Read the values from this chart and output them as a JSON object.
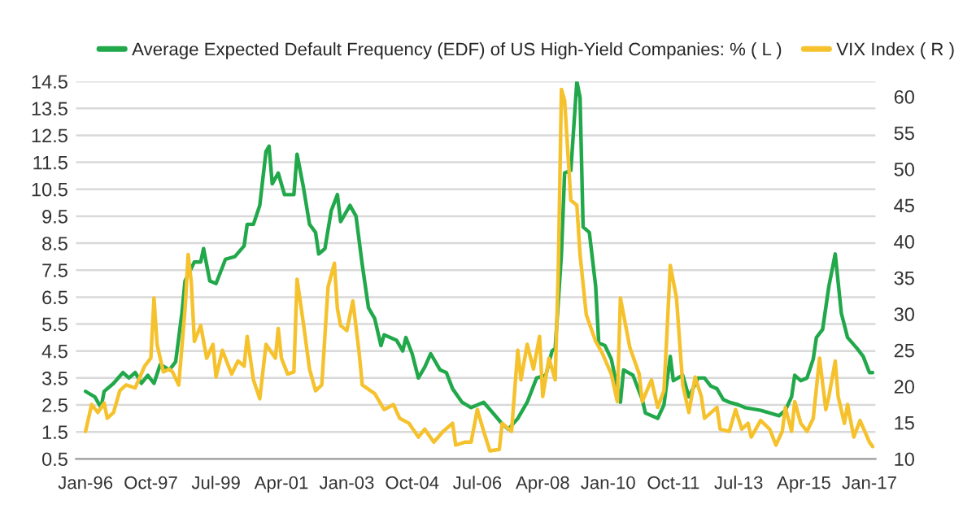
{
  "chart_data": {
    "type": "line",
    "xlim": [
      "1995-10",
      "2017-03"
    ],
    "xticks": [
      {
        "value": "1996-01",
        "label": "Jan-96"
      },
      {
        "value": "1997-10",
        "label": "Oct-97"
      },
      {
        "value": "1999-07",
        "label": "Jul-99"
      },
      {
        "value": "2001-04",
        "label": "Apr-01"
      },
      {
        "value": "2003-01",
        "label": "Jan-03"
      },
      {
        "value": "2004-10",
        "label": "Oct-04"
      },
      {
        "value": "2006-07",
        "label": "Jul-06"
      },
      {
        "value": "2008-04",
        "label": "Apr-08"
      },
      {
        "value": "2010-01",
        "label": "Jan-10"
      },
      {
        "value": "2011-10",
        "label": "Oct-11"
      },
      {
        "value": "2013-07",
        "label": "Jul-13"
      },
      {
        "value": "2015-04",
        "label": "Apr-15"
      },
      {
        "value": "2017-01",
        "label": "Jan-17"
      }
    ],
    "ylim": [
      0.5,
      14.5
    ],
    "yticks": [
      0.5,
      1.5,
      2.5,
      3.5,
      4.5,
      5.5,
      6.5,
      7.5,
      8.5,
      9.5,
      10.5,
      11.5,
      12.5,
      13.5,
      14.5
    ],
    "y2lim": [
      10,
      62.1
    ],
    "y2ticks": [
      10,
      15,
      20,
      25,
      30,
      35,
      40,
      45,
      50,
      55,
      60
    ],
    "grid": "y",
    "legend": "top",
    "line_style": "solid",
    "marker": "none",
    "series": [
      {
        "name": "Average Expected Default Frequency (EDF) of US High-Yield Companies: % ( L )",
        "color": "#21a84a",
        "axis": "y",
        "x": [
          "1996-01",
          "1996-04",
          "1996-06",
          "1996-07",
          "1996-10",
          "1997-01",
          "1997-03",
          "1997-05",
          "1997-07",
          "1997-09",
          "1997-11",
          "1998-01",
          "1998-04",
          "1998-06",
          "1998-08",
          "1998-09",
          "1998-12",
          "1999-02",
          "1999-03",
          "1999-05",
          "1999-07",
          "1999-10",
          "2000-01",
          "2000-04",
          "2000-05",
          "2000-07",
          "2000-09",
          "2000-11",
          "2000-12",
          "2001-01",
          "2001-03",
          "2001-05",
          "2001-08",
          "2001-09",
          "2001-11",
          "2002-01",
          "2002-03",
          "2002-04",
          "2002-06",
          "2002-08",
          "2002-10",
          "2002-11",
          "2003-02",
          "2003-04",
          "2003-06",
          "2003-08",
          "2003-10",
          "2003-12",
          "2004-01",
          "2004-05",
          "2004-07",
          "2004-08",
          "2004-10",
          "2004-12",
          "2005-02",
          "2005-04",
          "2005-07",
          "2005-09",
          "2005-11",
          "2006-02",
          "2006-05",
          "2006-09",
          "2006-12",
          "2007-03",
          "2007-05",
          "2007-08",
          "2007-11",
          "2008-02",
          "2008-05",
          "2008-07",
          "2008-08",
          "2008-10",
          "2008-11",
          "2009-01",
          "2009-03",
          "2009-04",
          "2009-05",
          "2009-07",
          "2009-09",
          "2009-10",
          "2009-12",
          "2010-02",
          "2010-05",
          "2010-06",
          "2010-09",
          "2010-12",
          "2011-01",
          "2011-05",
          "2011-07",
          "2011-09",
          "2011-10",
          "2012-01",
          "2012-03",
          "2012-06",
          "2012-08",
          "2012-10",
          "2012-12",
          "2013-02",
          "2013-04",
          "2013-07",
          "2013-09",
          "2014-02",
          "2014-05",
          "2014-08",
          "2014-10",
          "2014-12",
          "2015-01",
          "2015-03",
          "2015-05",
          "2015-07",
          "2015-08",
          "2015-10",
          "2015-12",
          "2016-02",
          "2016-04",
          "2016-06",
          "2016-09",
          "2016-11",
          "2017-01",
          "2017-02"
        ],
        "values": [
          3.0,
          2.8,
          2.4,
          3.0,
          3.3,
          3.7,
          3.5,
          3.7,
          3.3,
          3.6,
          3.3,
          4.0,
          3.8,
          4.1,
          5.9,
          7.1,
          7.8,
          7.8,
          8.3,
          7.1,
          7.0,
          7.9,
          8.0,
          8.4,
          9.2,
          9.2,
          9.9,
          11.9,
          12.1,
          10.7,
          11.1,
          10.3,
          10.3,
          11.8,
          10.6,
          9.2,
          8.9,
          8.1,
          8.3,
          9.7,
          10.3,
          9.3,
          9.9,
          9.5,
          7.7,
          6.1,
          5.7,
          4.7,
          5.1,
          4.9,
          4.5,
          5.0,
          4.4,
          3.5,
          3.9,
          4.4,
          3.8,
          3.7,
          3.1,
          2.6,
          2.4,
          2.6,
          2.2,
          1.8,
          1.6,
          2.0,
          2.6,
          3.5,
          3.6,
          4.5,
          4.6,
          8.1,
          11.1,
          11.2,
          14.5,
          13.9,
          9.1,
          8.9,
          6.9,
          4.8,
          4.7,
          4.2,
          2.6,
          3.8,
          3.6,
          2.7,
          2.2,
          2.0,
          2.5,
          4.3,
          3.4,
          3.6,
          2.8,
          3.5,
          3.5,
          3.2,
          3.1,
          2.7,
          2.6,
          2.5,
          2.4,
          2.3,
          2.2,
          2.1,
          2.3,
          2.8,
          3.6,
          3.4,
          3.5,
          4.2,
          5.0,
          5.3,
          6.9,
          8.1,
          5.9,
          5.0,
          4.6,
          4.3,
          3.7,
          3.7
        ]
      },
      {
        "name": "VIX Index ( R )",
        "color": "#f5c22e",
        "axis": "y2",
        "x": [
          "1996-01",
          "1996-03",
          "1996-05",
          "1996-07",
          "1996-08",
          "1996-10",
          "1996-12",
          "1997-02",
          "1997-05",
          "1997-08",
          "1997-10",
          "1997-11",
          "1997-12",
          "1998-02",
          "1998-04",
          "1998-05",
          "1998-07",
          "1998-09",
          "1998-10",
          "1998-11",
          "1998-12",
          "1999-02",
          "1999-04",
          "1999-06",
          "1999-07",
          "1999-09",
          "1999-12",
          "2000-02",
          "2000-04",
          "2000-05",
          "2000-07",
          "2000-09",
          "2000-11",
          "2001-02",
          "2001-03",
          "2001-04",
          "2001-06",
          "2001-08",
          "2001-09",
          "2001-11",
          "2002-01",
          "2002-03",
          "2002-05",
          "2002-07",
          "2002-09",
          "2002-10",
          "2002-11",
          "2003-01",
          "2003-03",
          "2003-05",
          "2003-06",
          "2003-10",
          "2004-01",
          "2004-04",
          "2004-06",
          "2004-09",
          "2004-12",
          "2005-02",
          "2005-05",
          "2005-08",
          "2005-11",
          "2005-12",
          "2006-03",
          "2006-05",
          "2006-07",
          "2006-09",
          "2006-11",
          "2007-02",
          "2007-03",
          "2007-06",
          "2007-08",
          "2007-09",
          "2007-11",
          "2008-01",
          "2008-03",
          "2008-04",
          "2008-06",
          "2008-08",
          "2008-09",
          "2008-10",
          "2008-11",
          "2009-01",
          "2009-03",
          "2009-04",
          "2009-06",
          "2009-09",
          "2009-11",
          "2010-02",
          "2010-04",
          "2010-05",
          "2010-08",
          "2010-11",
          "2010-12",
          "2011-03",
          "2011-05",
          "2011-07",
          "2011-08",
          "2011-09",
          "2011-11",
          "2012-01",
          "2012-03",
          "2012-05",
          "2012-07",
          "2012-08",
          "2012-12",
          "2013-01",
          "2013-04",
          "2013-06",
          "2013-08",
          "2013-10",
          "2013-11",
          "2014-02",
          "2014-05",
          "2014-07",
          "2014-09",
          "2014-10",
          "2014-12",
          "2015-01",
          "2015-03",
          "2015-05",
          "2015-07",
          "2015-09",
          "2015-11",
          "2015-12",
          "2016-02",
          "2016-03",
          "2016-05",
          "2016-06",
          "2016-08",
          "2016-10",
          "2017-01",
          "2017-02"
        ],
        "values": [
          13.8,
          17.5,
          16.4,
          17.7,
          15.6,
          16.4,
          19.4,
          20.2,
          19.8,
          22.8,
          23.9,
          32.2,
          25.8,
          22.0,
          22.4,
          22.0,
          20.2,
          30.7,
          38.2,
          34.4,
          26.2,
          28.4,
          23.9,
          25.8,
          21.3,
          25.0,
          21.7,
          23.5,
          22.8,
          26.9,
          20.9,
          18.3,
          25.8,
          23.9,
          28.0,
          23.9,
          21.7,
          22.0,
          34.8,
          28.8,
          22.4,
          19.4,
          20.2,
          33.7,
          37.0,
          30.7,
          28.4,
          27.7,
          31.8,
          24.7,
          20.2,
          19.0,
          16.8,
          17.5,
          15.6,
          14.9,
          13.0,
          14.1,
          12.3,
          13.8,
          14.9,
          11.9,
          12.3,
          12.3,
          16.8,
          13.8,
          11.1,
          11.3,
          14.9,
          13.8,
          25.0,
          20.9,
          25.8,
          22.4,
          26.9,
          18.6,
          23.9,
          20.9,
          36.7,
          61.0,
          59.5,
          45.7,
          45.0,
          38.2,
          29.9,
          26.2,
          24.7,
          21.7,
          17.9,
          32.2,
          25.4,
          21.7,
          17.9,
          20.9,
          17.1,
          19.4,
          27.7,
          36.7,
          32.2,
          20.2,
          16.4,
          21.3,
          18.6,
          15.6,
          17.1,
          14.1,
          13.8,
          16.8,
          14.1,
          14.9,
          13.0,
          15.3,
          14.1,
          11.9,
          13.8,
          17.1,
          13.8,
          17.9,
          14.9,
          13.8,
          15.6,
          23.9,
          16.8,
          18.6,
          23.5,
          18.6,
          14.9,
          17.5,
          13.0,
          15.3,
          12.3,
          11.7
        ]
      }
    ]
  }
}
